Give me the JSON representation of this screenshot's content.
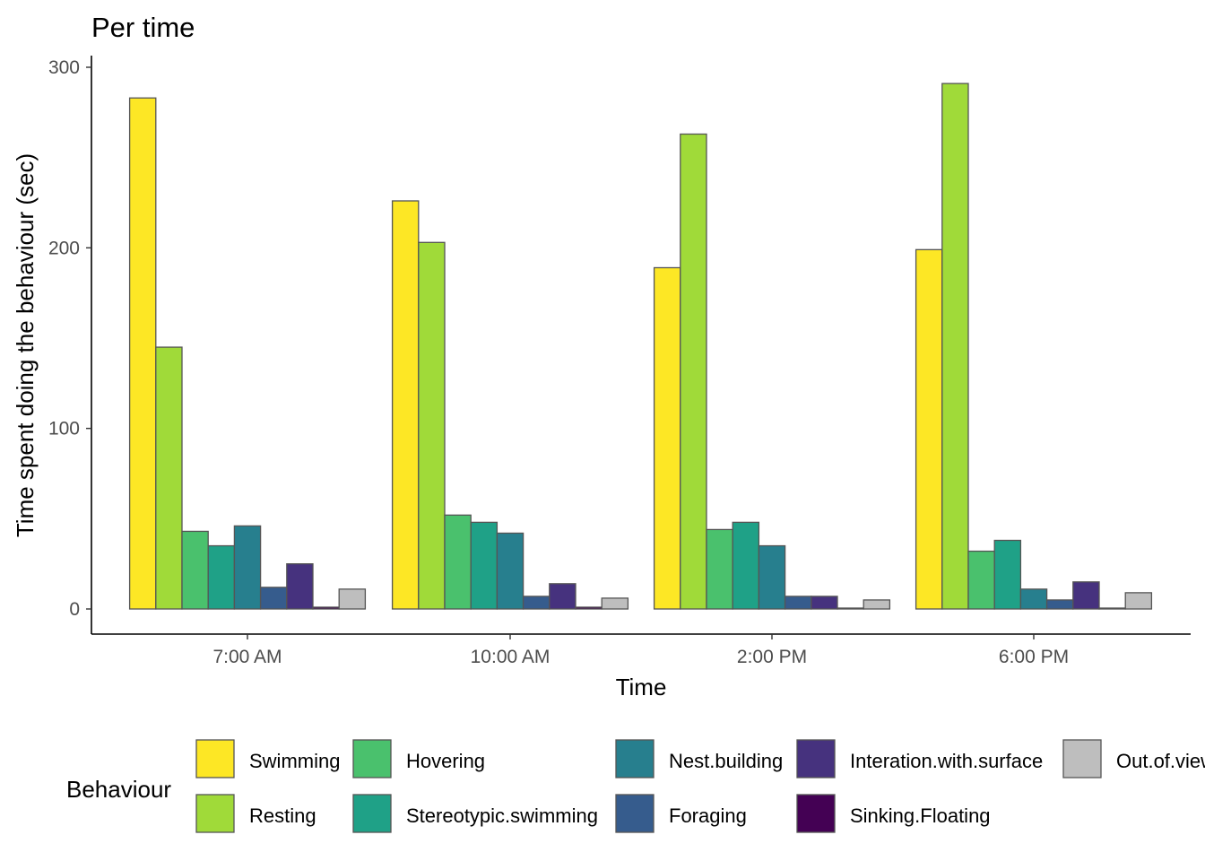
{
  "chart_data": {
    "type": "bar",
    "title": "Per time",
    "xlabel": "Time",
    "ylabel": "Time spent doing the behaviour (sec)",
    "ylim": [
      0,
      300
    ],
    "yticks": [
      0,
      100,
      200,
      300
    ],
    "grid": false,
    "categories": [
      "7:00 AM",
      "10:00 AM",
      "2:00 PM",
      "6:00 PM"
    ],
    "legend": {
      "title": "Behaviour",
      "position": "bottom"
    },
    "series": [
      {
        "name": "Swimming",
        "color": "#FDE725",
        "values": [
          283,
          226,
          189,
          199
        ]
      },
      {
        "name": "Resting",
        "color": "#A0DA39",
        "values": [
          145,
          203,
          263,
          291
        ]
      },
      {
        "name": "Hovering",
        "color": "#4AC16D",
        "values": [
          43,
          52,
          44,
          32
        ]
      },
      {
        "name": "Stereotypic.swimming",
        "color": "#1FA187",
        "values": [
          35,
          48,
          48,
          38
        ]
      },
      {
        "name": "Nest.building",
        "color": "#277F8E",
        "values": [
          46,
          42,
          35,
          11
        ]
      },
      {
        "name": "Foraging",
        "color": "#365C8D",
        "values": [
          12,
          7,
          7,
          5
        ]
      },
      {
        "name": "Interation.with.surface",
        "color": "#46327E",
        "values": [
          25,
          14,
          7,
          15
        ]
      },
      {
        "name": "Sinking.Floating",
        "color": "#440154",
        "values": [
          1,
          1,
          0.5,
          0.5
        ]
      },
      {
        "name": "Out.of.view",
        "color": "#BEBEBE",
        "values": [
          11,
          6,
          5,
          9
        ]
      }
    ]
  }
}
